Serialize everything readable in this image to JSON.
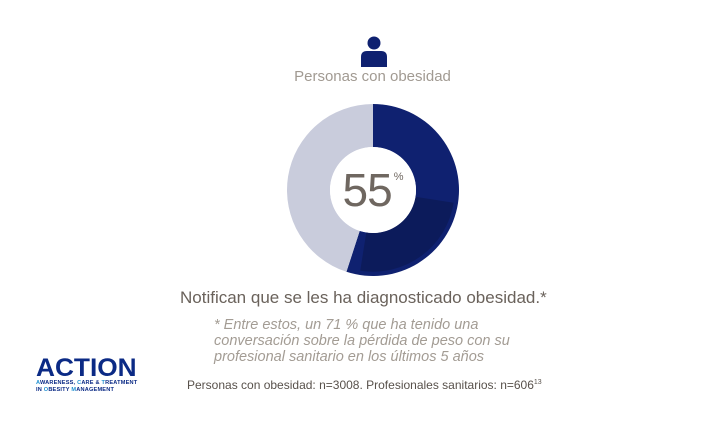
{
  "header": {
    "icon": "person-icon",
    "group_label": "Personas con obesidad"
  },
  "chart_data": {
    "type": "pie",
    "style": "donut",
    "slices": [
      {
        "value": 55,
        "color": "#0f2170"
      },
      {
        "value": 45,
        "color": "#c9ccdc"
      }
    ],
    "center_label": "55",
    "center_unit": "%"
  },
  "text": {
    "headline": "Notifican que se les ha diagnosticado obesidad.*",
    "footnote": "* Entre estos, un 71 % que ha tenido una conversación sobre la pérdida de peso con su profesional sanitario en los últimos 5 años",
    "source": "Personas con obesidad: n=3008. Profesionales sanitarios: n=606",
    "source_ref": "13"
  },
  "logo": {
    "word": "ACTION",
    "line1": [
      "A",
      "WARENESS, ",
      "C",
      "ARE & ",
      "T",
      "REATMENT"
    ],
    "line2": [
      "IN ",
      "O",
      "BESITY ",
      "M",
      "ANAGEMENT"
    ]
  },
  "colors": {
    "accent": "#0f2170",
    "remainder": "#c9ccdc",
    "logo": "#0b2a85"
  }
}
